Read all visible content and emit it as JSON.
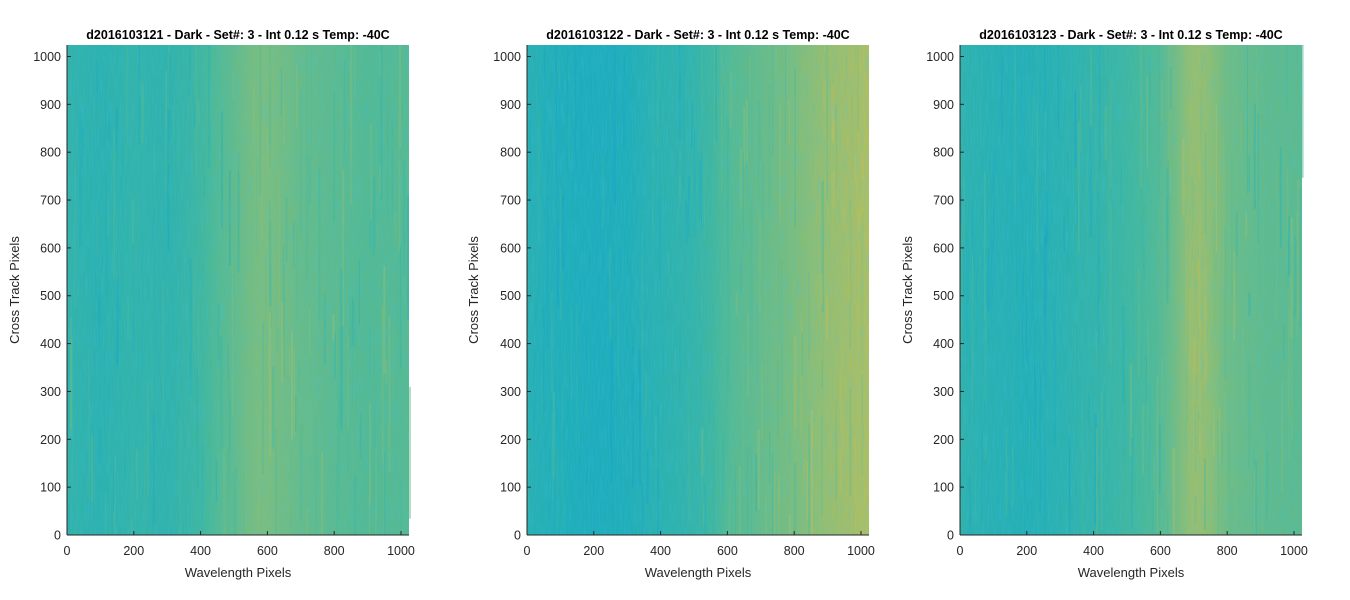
{
  "figure": {
    "colormap_colors": [
      "#0f9ed5",
      "#21aeb8",
      "#47b89a",
      "#7dbd7c",
      "#b5bf5f",
      "#e0ba45"
    ]
  },
  "chart_data": [
    {
      "type": "heatmap",
      "title": "d2016103121 - Dark - Set#: 3 - Int 0.12 s Temp: -40C",
      "xlabel": "Wavelength Pixels",
      "ylabel": "Cross Track Pixels",
      "xlim": [
        0,
        1024
      ],
      "ylim": [
        0,
        1024
      ],
      "xticks": [
        0,
        200,
        400,
        600,
        800,
        1000
      ],
      "yticks": [
        0,
        100,
        200,
        300,
        400,
        500,
        600,
        700,
        800,
        900,
        1000
      ],
      "grid": false,
      "column_profile": {
        "x": [
          0,
          100,
          200,
          300,
          400,
          450,
          500,
          550,
          600,
          650,
          700,
          800,
          900,
          1024
        ],
        "level": [
          0.3,
          0.26,
          0.3,
          0.28,
          0.36,
          0.45,
          0.5,
          0.58,
          0.6,
          0.56,
          0.52,
          0.48,
          0.45,
          0.46
        ]
      }
    },
    {
      "type": "heatmap",
      "title": "d2016103122 - Dark - Set#: 3 - Int 0.12 s Temp: -40C",
      "xlabel": "Wavelength Pixels",
      "ylabel": "Cross Track Pixels",
      "xlim": [
        0,
        1024
      ],
      "ylim": [
        0,
        1024
      ],
      "xticks": [
        0,
        200,
        400,
        600,
        800,
        1000
      ],
      "yticks": [
        0,
        100,
        200,
        300,
        400,
        500,
        600,
        700,
        800,
        900,
        1000
      ],
      "grid": false,
      "column_profile": {
        "x": [
          0,
          100,
          200,
          300,
          400,
          500,
          550,
          600,
          700,
          800,
          900,
          1024
        ],
        "level": [
          0.24,
          0.2,
          0.18,
          0.2,
          0.26,
          0.3,
          0.36,
          0.45,
          0.52,
          0.6,
          0.7,
          0.78
        ]
      }
    },
    {
      "type": "heatmap",
      "title": "d2016103123 - Dark - Set#: 3 - Int 0.12 s Temp: -40C",
      "xlabel": "Wavelength Pixels",
      "ylabel": "Cross Track Pixels",
      "xlim": [
        0,
        1024
      ],
      "ylim": [
        0,
        1024
      ],
      "xticks": [
        0,
        200,
        400,
        600,
        800,
        1000
      ],
      "yticks": [
        0,
        100,
        200,
        300,
        400,
        500,
        600,
        700,
        800,
        900,
        1000
      ],
      "grid": false,
      "column_profile": {
        "x": [
          0,
          100,
          200,
          300,
          400,
          500,
          600,
          650,
          700,
          750,
          800,
          900,
          1024
        ],
        "level": [
          0.28,
          0.24,
          0.22,
          0.26,
          0.3,
          0.36,
          0.46,
          0.58,
          0.72,
          0.66,
          0.55,
          0.5,
          0.48
        ]
      }
    }
  ]
}
